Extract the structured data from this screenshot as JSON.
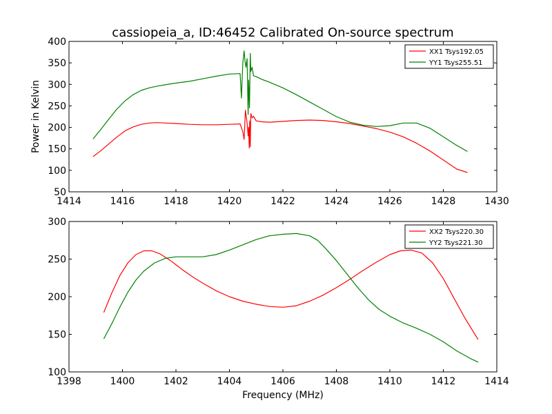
{
  "figure": {
    "title": "cassiopeia_a, ID:46452 Calibrated On-source spectrum"
  },
  "chart_data": [
    {
      "type": "line",
      "title": "cassiopeia_a, ID:46452 Calibrated On-source spectrum",
      "xlabel": "",
      "ylabel": "Power in Kelvin",
      "xlim": [
        1414,
        1430
      ],
      "ylim": [
        50,
        400
      ],
      "xticks": [
        1414,
        1416,
        1418,
        1420,
        1422,
        1424,
        1426,
        1428,
        1430
      ],
      "yticks": [
        50,
        100,
        150,
        200,
        250,
        300,
        350,
        400
      ],
      "legend_position": "top-right",
      "grid": false,
      "series": [
        {
          "name": "XX1 Tsys192.05",
          "color": "#ff0000",
          "x": [
            1414.9,
            1415.2,
            1415.5,
            1415.8,
            1416.1,
            1416.4,
            1416.7,
            1417.0,
            1417.3,
            1417.6,
            1418.0,
            1418.5,
            1419.0,
            1419.5,
            1420.0,
            1420.4,
            1420.5,
            1420.55,
            1420.6,
            1420.63,
            1420.66,
            1420.7,
            1420.72,
            1420.74,
            1420.76,
            1420.78,
            1420.8,
            1420.85,
            1420.9,
            1421.0,
            1421.2,
            1421.5,
            1422.0,
            1422.5,
            1423.0,
            1423.5,
            1424.0,
            1424.5,
            1425.0,
            1425.5,
            1426.0,
            1426.5,
            1427.0,
            1427.5,
            1428.0,
            1428.5,
            1428.9
          ],
          "y": [
            132,
            146,
            162,
            178,
            192,
            201,
            207,
            210,
            211,
            210,
            209,
            207,
            206,
            206,
            207,
            208,
            190,
            172,
            240,
            225,
            210,
            180,
            200,
            152,
            215,
            155,
            232,
            222,
            226,
            215,
            213,
            212,
            214,
            216,
            217,
            216,
            213,
            209,
            203,
            197,
            189,
            178,
            163,
            145,
            124,
            103,
            95
          ]
        },
        {
          "name": "YY1 Tsys255.51",
          "color": "#008000",
          "x": [
            1414.9,
            1415.2,
            1415.5,
            1415.8,
            1416.1,
            1416.4,
            1416.7,
            1417.0,
            1417.3,
            1417.6,
            1418.0,
            1418.5,
            1419.0,
            1419.5,
            1420.0,
            1420.4,
            1420.45,
            1420.5,
            1420.55,
            1420.58,
            1420.62,
            1420.66,
            1420.7,
            1420.72,
            1420.75,
            1420.78,
            1420.8,
            1420.85,
            1420.9,
            1421.0,
            1421.2,
            1421.5,
            1422.0,
            1422.5,
            1423.0,
            1423.5,
            1424.0,
            1424.5,
            1425.0,
            1425.5,
            1426.0,
            1426.5,
            1427.0,
            1427.5,
            1428.0,
            1428.5,
            1428.9
          ],
          "y": [
            173,
            196,
            220,
            243,
            262,
            276,
            286,
            292,
            296,
            299,
            303,
            307,
            313,
            319,
            324,
            325,
            268,
            350,
            378,
            355,
            340,
            360,
            230,
            310,
            245,
            372,
            330,
            340,
            320,
            318,
            312,
            305,
            292,
            276,
            259,
            242,
            225,
            212,
            205,
            202,
            204,
            210,
            210,
            198,
            178,
            158,
            144
          ]
        }
      ]
    },
    {
      "type": "line",
      "title": "",
      "xlabel": "Frequency (MHz)",
      "ylabel": "",
      "xlim": [
        1398,
        1414
      ],
      "ylim": [
        100,
        300
      ],
      "xticks": [
        1398,
        1400,
        1402,
        1404,
        1406,
        1408,
        1410,
        1412,
        1414
      ],
      "yticks": [
        100,
        150,
        200,
        250,
        300
      ],
      "legend_position": "top-right",
      "grid": false,
      "series": [
        {
          "name": "XX2 Tsys220.30",
          "color": "#ff0000",
          "x": [
            1399.3,
            1399.6,
            1399.9,
            1400.2,
            1400.5,
            1400.8,
            1401.1,
            1401.4,
            1401.8,
            1402.2,
            1402.6,
            1403.0,
            1403.5,
            1404.0,
            1404.5,
            1405.0,
            1405.5,
            1406.0,
            1406.5,
            1407.0,
            1407.5,
            1408.0,
            1408.5,
            1409.0,
            1409.5,
            1410.0,
            1410.4,
            1410.8,
            1411.2,
            1411.6,
            1412.0,
            1412.4,
            1412.8,
            1413.3
          ],
          "y": [
            179,
            205,
            228,
            245,
            256,
            261,
            261,
            257,
            248,
            237,
            227,
            218,
            208,
            200,
            194,
            190,
            187,
            186,
            188,
            194,
            202,
            212,
            223,
            235,
            246,
            256,
            261,
            262,
            258,
            245,
            224,
            198,
            172,
            143
          ]
        },
        {
          "name": "YY2 Tsys221.30",
          "color": "#008000",
          "x": [
            1399.3,
            1399.6,
            1399.9,
            1400.2,
            1400.5,
            1400.8,
            1401.2,
            1401.6,
            1402.0,
            1402.5,
            1403.0,
            1403.5,
            1404.0,
            1404.5,
            1405.0,
            1405.5,
            1406.0,
            1406.5,
            1407.0,
            1407.3,
            1407.6,
            1408.0,
            1408.4,
            1408.8,
            1409.2,
            1409.6,
            1410.0,
            1410.5,
            1411.0,
            1411.5,
            1412.0,
            1412.5,
            1413.0,
            1413.3
          ],
          "y": [
            144,
            164,
            186,
            206,
            222,
            234,
            245,
            251,
            253,
            253,
            253,
            256,
            262,
            269,
            276,
            281,
            283,
            284,
            281,
            275,
            264,
            248,
            230,
            212,
            196,
            183,
            174,
            165,
            158,
            150,
            140,
            128,
            118,
            113
          ]
        }
      ]
    }
  ]
}
